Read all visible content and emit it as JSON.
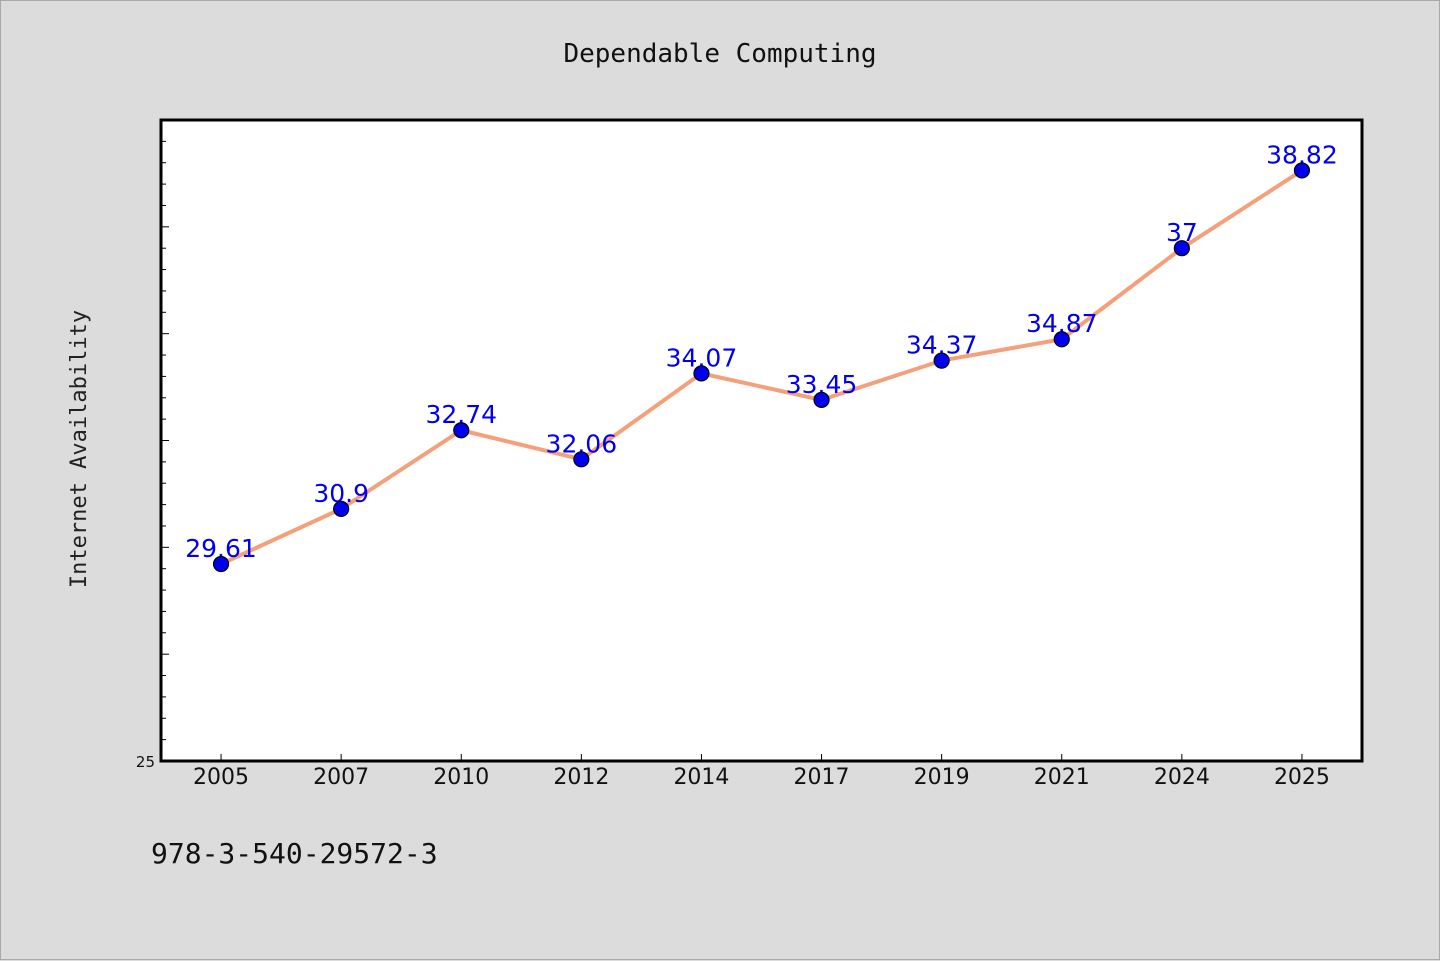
{
  "chart_data": {
    "type": "line",
    "title": "Dependable Computing",
    "xlabel": "",
    "ylabel": "Internet Availability",
    "categories": [
      "2005",
      "2007",
      "2010",
      "2012",
      "2014",
      "2017",
      "2019",
      "2021",
      "2024",
      "2025"
    ],
    "series": [
      {
        "values": [
          29.61,
          30.9,
          32.74,
          32.06,
          34.07,
          33.45,
          34.37,
          34.87,
          37,
          38.82
        ],
        "labels": [
          "29.61",
          "30.9",
          "32.74",
          "32.06",
          "34.07",
          "33.45",
          "34.37",
          "34.87",
          "37",
          "38.82"
        ],
        "line_color": "#f4a07a",
        "marker_color": "#0000ee"
      }
    ],
    "ylim": [
      25,
      40
    ],
    "yticks": [
      "25"
    ],
    "grid": false,
    "label_color": "#0000ee"
  },
  "footer": {
    "isbn": "978-3-540-29572-3"
  }
}
